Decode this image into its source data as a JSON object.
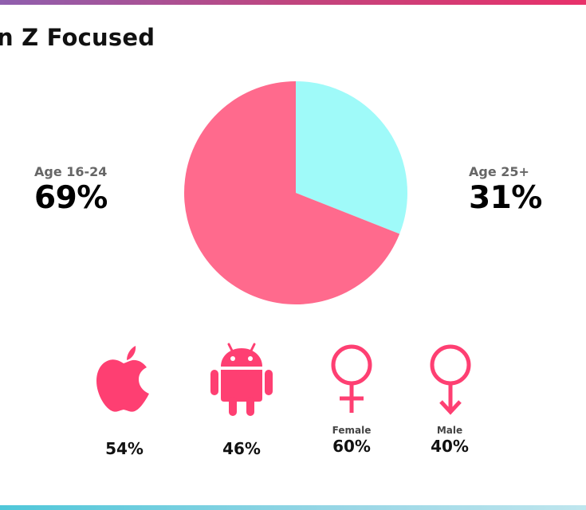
{
  "title": "n Z Focused",
  "chart_data": {
    "type": "pie",
    "slices": [
      {
        "label": "Age 16-24",
        "value": 69,
        "display": "69%",
        "color": "#ff6a8d"
      },
      {
        "label": "Age 25+",
        "value": 31,
        "display": "31%",
        "color": "#9ffaf9"
      }
    ]
  },
  "stats": {
    "apple": {
      "value": "54%",
      "icon": "apple-icon"
    },
    "android": {
      "value": "46%",
      "icon": "android-icon"
    },
    "female": {
      "label": "Female",
      "value": "60%",
      "icon": "female-symbol-icon"
    },
    "male": {
      "label": "Male",
      "value": "40%",
      "icon": "male-symbol-icon"
    }
  },
  "colors": {
    "pink": "#ff6a8d",
    "cyan": "#9ffaf9",
    "icon_pink": "#fe3f72"
  }
}
